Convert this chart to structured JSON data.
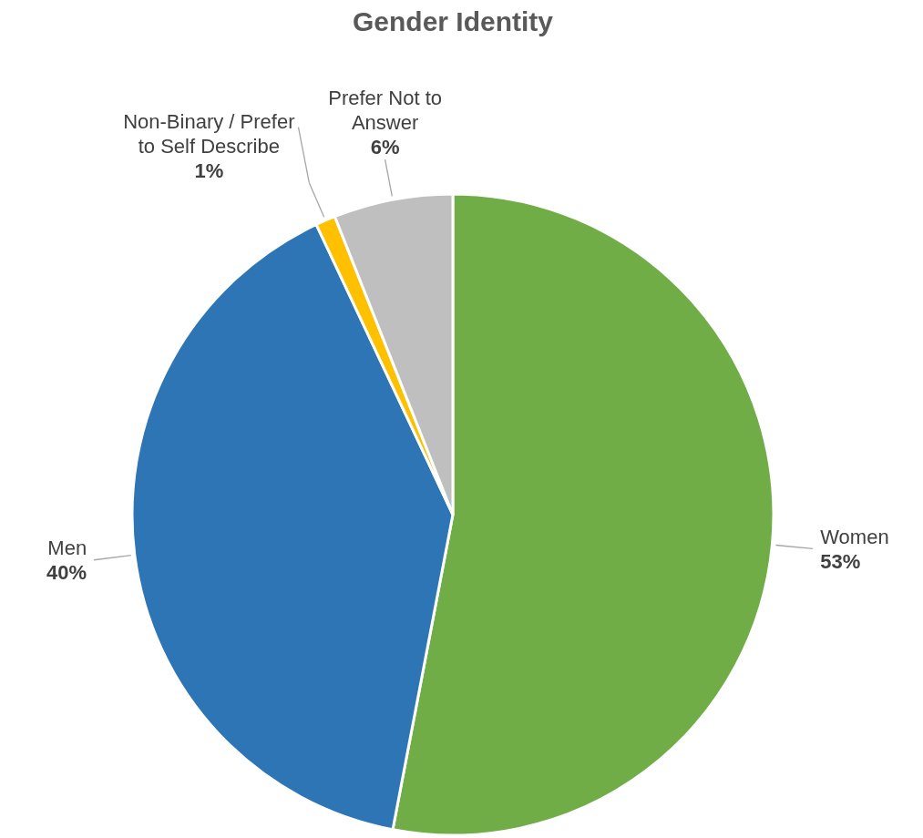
{
  "chart_data": {
    "type": "pie",
    "title": "Gender Identity",
    "categories": [
      "Women",
      "Men",
      "Non-Binary / Prefer to Self Describe",
      "Prefer Not to Answer"
    ],
    "values": [
      53,
      40,
      1,
      6
    ],
    "colors": [
      "#70ad47",
      "#2e75b6",
      "#ffc000",
      "#bfbfbf"
    ],
    "value_labels": [
      "53%",
      "40%",
      "1%",
      "6%"
    ]
  }
}
